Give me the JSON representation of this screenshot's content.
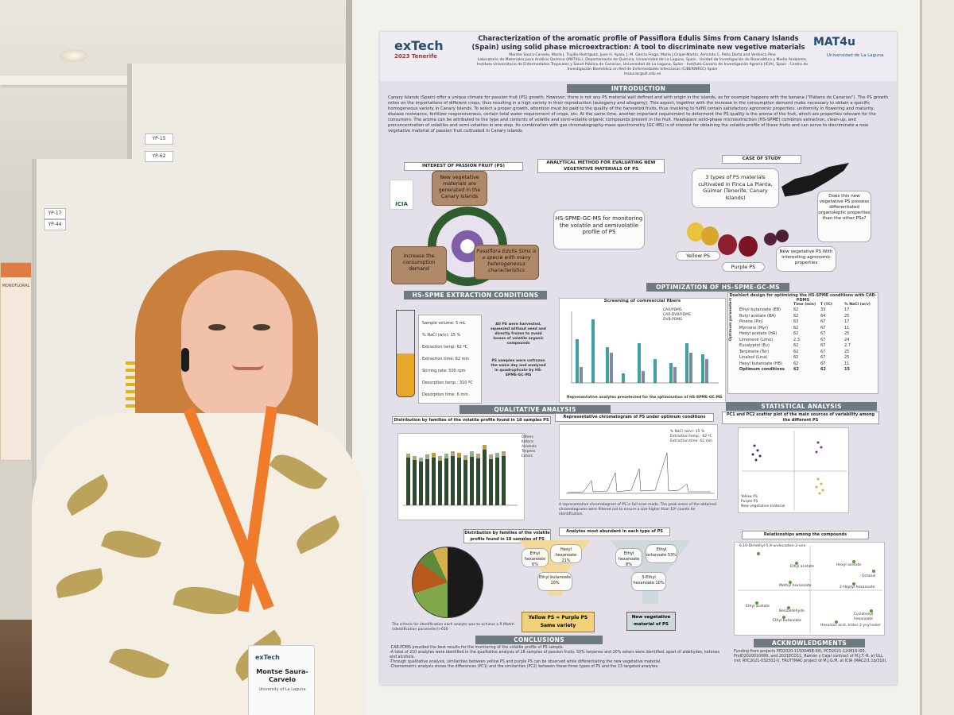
{
  "scene": {
    "description_type": "photo of a researcher standing beside a scientific poster at a conference",
    "panel_tags": [
      "YP-15",
      "YP-62",
      "YP-17",
      "YP-44"
    ],
    "left_poster_title": "MONOFLORAL",
    "colors": {
      "lanyard": "#f07b2b",
      "poster_section_bar": "#6e7a7d",
      "hair": "#c9803d"
    }
  },
  "poster": {
    "logo_left": "exTech",
    "logo_left_sub": "2023 Tenerife",
    "logo_right": "MAT4u",
    "logo_right_sub": "Universidad de La Laguna",
    "title": "Characterization of the aromatic profile of Passiflora Edulis Sims from Canary Islands (Spain) using solid phase microextraction: A tool to discriminate new vegetive materials",
    "authors": "Montse Saura-Carvelo, María J. Trujillo-Rodríguez, Juan H. Ayala, J. M. García Fraga, María J.Grajal-Martín, Armindo C. Peña Dorta and Verónica Pino",
    "affiliations": "Laboratorio de Materiales para Análisis Químico (MAT4LL), Departamento de Química, Universidad de La Laguna, Spain · Unidad de Investigación de Bioanalítica y Medio Ambiente, Instituto Universitario de Enfermedades Tropicales y Salud Pública de Canarias, Universidad de La Laguna, Spain · Instituto Canario de Investigación Agraria (ICIA), Spain · Centro de Investigación Biomédica en Red de Enfermedades Infecciosas (CIBERINFEC) Spain",
    "email": "msaurac@ull.edu.es",
    "sections": {
      "introduction": "INTRODUCTION",
      "interest": "INTEREST OF PASSION FRUIT (PS)",
      "analytical": "ANALYTICAL METHOD FOR EVALUATING NEW VEGETATIVE MATERIALS OF PS",
      "case_study": "CASE OF STUDY",
      "extraction": "HS-SPME EXTRACTION CONDITIONS",
      "optimization": "OPTIMIZATION OF HS-SPME-GC-MS",
      "qualitative": "QUALITATIVE ANALYSIS",
      "statistical": "STATISTICAL ANALYSIS",
      "conclusions": "CONCLUSIONS",
      "acknowledgments": "ACKNOWLEDGMENTS"
    },
    "intro_text": "Canary Islands (Spain) offer a unique climate for passion fruit (PS) growth. However, there is not any PS material well defined and with origin in the islands, as for example happens with the banana (\"Plátano de Canarias\"). The PS growth relies on the importations of different crops, thus resulting in a high variety in their reproduction (autogamy and allogamy). This aspect, together with the increase in the consumption demand make necessary to obtain a specific homogeneous variety in Canary Islands. To select a proper growth, attention must be paid to the quality of the harvested fruits, thus involving to fulfill certain satisfactory agronomic properties: uniformity in flowering and maturity, disease resistance, fertilizer responsiveness, certain total water requirement of crops, etc. At the same time, another important requirement to determent the PS quality is the aroma of the fruit, which are properties relevant for the consumers. The aroma can be attributed to the type and contents of volatile and semi-volatile organic compounds present in the fruit. Headspace solid-phase microextraction (HS-SPME) combines extraction, clean-up, and preconcentration of volatiles and semi-volatiles in one step. Its combination with gas chromatography-mass spectrometry (GC-MS) is of interest for obtaining the volatile profile of these fruits and can serve to discriminate a new vegetative material of passion fruit cultivated in Canary Islands.",
    "cards": {
      "new_materials": "New vegetative materials are generated in the Canary Islands",
      "species": "Passiflora Edulis Sims is a specie with many heterogeneous characteristics",
      "consumption": "Increase the consumption demand",
      "method": "HS-SPME-GC-MS for monitoring the volatile and semivolatile profile of PS",
      "case": "3 types of PS materials cultivated in Finca La Planta, Güímar (Tenerife, Canary Islands)",
      "question": "Does this new vegetative PS possess differentiated organoleptic properties than the other PSs?",
      "yellow": "Yellow PS",
      "purple": "Purple PS",
      "new_veg": "New vegetative PS With interesting agronomic properties",
      "icia": "ICIA"
    },
    "extraction_conditions": [
      "Sample volume: 5 mL",
      "% NaCl (w/v): 15 %",
      "Extraction temp: 62 ºC",
      "Extraction time: 62 min",
      "Stirring rate: 500 rpm",
      "Desorption temp.: 310 ºC",
      "Desorption time: 6 min"
    ],
    "extraction_notes": [
      "All PS were harvested, squeezed without seed and directly frozen to avoid losses of volatile organic compounds",
      "PS samples were unfrozen the same day and analyzed in quadruplicate by HS-SPME-GC-MS"
    ],
    "fibers_title": "Screening of commercial fibers",
    "fibers_legend": [
      "CAR/PDMS",
      "CAR-DVB/PDMS",
      "DVB-PDMS"
    ],
    "fibers_caption": "Representative analytes preselected for the optimisation of HS-SPME-GC-MS",
    "doehlert_title": "Doehlert design for optimizing the HS-SPME conditions with CAR-PDMS",
    "doehlert_headers": [
      "Time (min)",
      "T (ºC)",
      "% NaCl (w/v)"
    ],
    "doehlert_rows": [
      [
        "Ethyl butanoate (EB)",
        "62",
        "33",
        "17"
      ],
      [
        "Butyl acetate (BA)",
        "62",
        "64",
        "25"
      ],
      [
        "Pinene (Pin)",
        "63",
        "67",
        "17"
      ],
      [
        "Myrcene (Myr)",
        "62",
        "67",
        "11"
      ],
      [
        "Hexyl acetate (HA)",
        "62",
        "67",
        "25"
      ],
      [
        "Limonene (Limo)",
        "2.3",
        "67",
        "24"
      ],
      [
        "Eucalyptol (Eu)",
        "62",
        "67",
        "2.7"
      ],
      [
        "Terpinene (Ter)",
        "62",
        "67",
        "25"
      ],
      [
        "Linalool (Lina)",
        "62",
        "67",
        "25"
      ],
      [
        "Hexyl butanoate (HB)",
        "62",
        "67",
        "11"
      ],
      [
        "Optimum conditions",
        "62",
        "62",
        "15"
      ]
    ],
    "optimum_label": "Optimum parameters",
    "qual_dist_title": "Distribution by families of the volatile profile found in 18 samples PS",
    "families": [
      "Others",
      "Ketons",
      "Alcohols",
      "Terpens",
      "Esters"
    ],
    "chromatogram_title": "Representative chromatogram of PS under optimum conditions",
    "chromatogram_caption": "A representative chromatogram of PS in full scan mode. The peak areas of the obtained chromatograms were filtered out to ensure a size higher than 10⁶ counts for identification.",
    "chromatogram_conditions": [
      "% NaCl (w/v): 15 %",
      "Extraction temp.: 62 ºC",
      "Extraction time: 62 min"
    ],
    "pie_title": "Distribution by families of the volatile profile found in 18 samples of PS",
    "pie_note": "The criteria for identification each analyte was to achieve a R Match (identification parameter)>650",
    "abundant_title": "Analytes most abundant in each type of PS",
    "funnel_yellow": [
      "Ethyl hexanoate 6%",
      "Hexyl hexanoate 21%",
      "Ethyl butanoate 10%"
    ],
    "funnel_new": [
      "Ethyl hexanoate 8%",
      "Ethyl octanoate 53%",
      "3-Ethyl hexanoate 10%"
    ],
    "result_yellow": "Yellow PS = Purple PS",
    "result_yellow_sub": "Same variety",
    "result_new": "New vegetative material of PS",
    "pca_title": "PC1 and PC2 scatter plot of the main sources of variability among the different PS",
    "pca_legend": [
      "Yellow PS",
      "Purple PS",
      "New vegetative material"
    ],
    "relations_title": "Relationships among the compounds",
    "compounds": [
      "6,10-Dimethyl-5,9-undecadien-2-one",
      "Ethyl acetate",
      "Hexyl acetate",
      "Octanol",
      "Methyl hexanoate",
      "2-Heptyl hexanoate",
      "Ethyl acetate",
      "Benzaldehyde",
      "Ethyl butanoate",
      "Cyclohexyl hexanoate",
      "Hexanoic acid, tridec-2-ynyl ester"
    ],
    "conclusions": [
      "-CAR-PDMS provided the best results for the monitoring of the volatile profile of PS sample.",
      "-A total of 210 analytes were identified in the qualitative analysis of 18 samples of passion fruits: 50% terpenes and 20% esters were identified, apart of aldehydes, ketones and alcohols.",
      "-Through qualitative analysis, similarities between yellow PS and purple PS can be observed while differentiating the new vegetative material.",
      "-Chemometric analysis shows the differences (PC1) and the similarities (PC2) between these three types of PS and the 13 targeted analytes."
    ],
    "ack_text": "Funding from projects PID2020-115004RB-I00, PCD2021-120816-I00, ProID2020010089, and 2021ECO11, Ramón y Cajal contract of M.J.T.-R. at ULL (ref. RYC2021-032502-I), FRUTTMAC project of M.J.G.M. at ICIA (MAC2/1.1b/310)."
  },
  "badge": {
    "logo": "exTech",
    "name": "Montse Saura-Carvelo",
    "affiliation": "University of La Laguna"
  }
}
